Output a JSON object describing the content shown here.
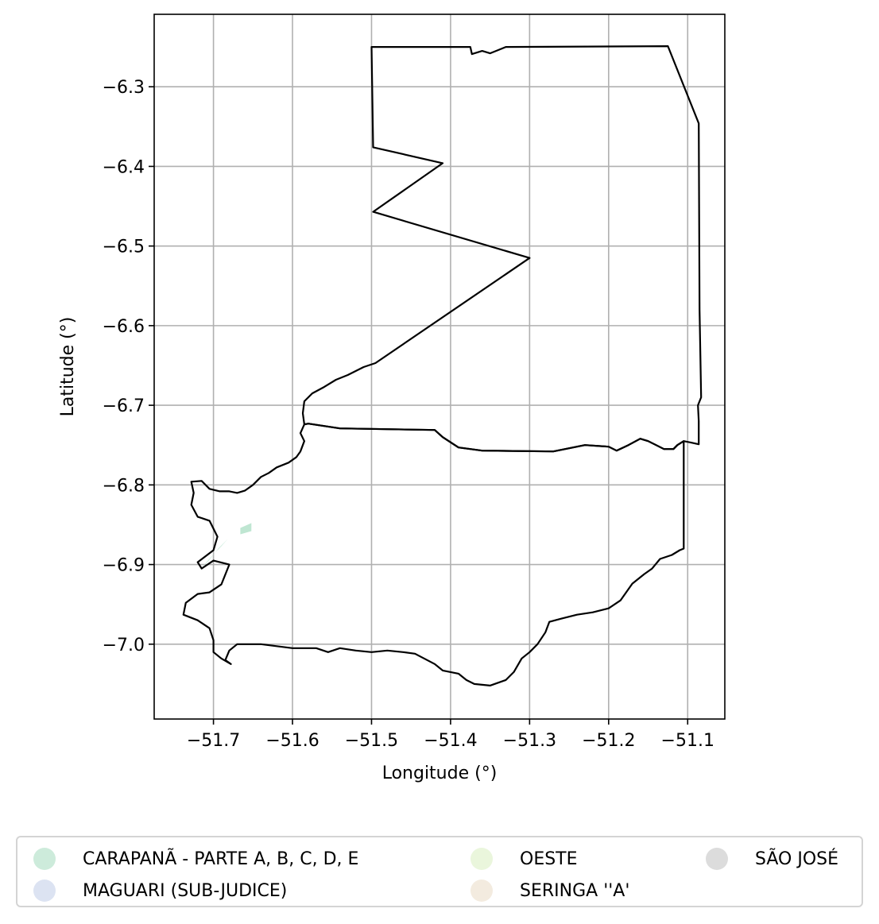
{
  "map": {
    "xlabel": "Longitude (°)",
    "ylabel": "Latitude (°)",
    "x_ticks": [
      {
        "value": -51.7,
        "label": "−51.7"
      },
      {
        "value": -51.6,
        "label": "−51.6"
      },
      {
        "value": -51.5,
        "label": "−51.5"
      },
      {
        "value": -51.4,
        "label": "−51.4"
      },
      {
        "value": -51.3,
        "label": "−51.3"
      },
      {
        "value": -51.2,
        "label": "−51.2"
      },
      {
        "value": -51.1,
        "label": "−51.1"
      }
    ],
    "y_ticks": [
      {
        "value": -6.3,
        "label": "−6.3"
      },
      {
        "value": -6.4,
        "label": "−6.4"
      },
      {
        "value": -6.5,
        "label": "−6.5"
      },
      {
        "value": -6.6,
        "label": "−6.6"
      },
      {
        "value": -6.7,
        "label": "−6.7"
      },
      {
        "value": -6.8,
        "label": "−6.8"
      },
      {
        "value": -6.9,
        "label": "−6.9"
      },
      {
        "value": -7.0,
        "label": "−7.0"
      }
    ],
    "xlim": [
      -51.775,
      -51.053
    ],
    "ylim": [
      -7.094,
      -6.209
    ],
    "grid": true,
    "legend_position": "bottom-center",
    "outline_color": "#000000",
    "regions": [
      {
        "name": "north-block",
        "coords": [
          [
            -51.5,
            -6.25
          ],
          [
            -51.375,
            -6.25
          ],
          [
            -51.373,
            -6.259
          ],
          [
            -51.36,
            -6.255
          ],
          [
            -51.35,
            -6.258
          ],
          [
            -51.34,
            -6.254
          ],
          [
            -51.33,
            -6.25
          ],
          [
            -51.125,
            -6.249
          ],
          [
            -51.086,
            -6.346
          ],
          [
            -51.085,
            -6.58
          ],
          [
            -51.083,
            -6.69
          ],
          [
            -51.087,
            -6.7
          ],
          [
            -51.086,
            -6.72
          ],
          [
            -51.086,
            -6.749
          ],
          [
            -51.095,
            -6.747
          ],
          [
            -51.105,
            -6.745
          ],
          [
            -51.113,
            -6.75
          ],
          [
            -51.118,
            -6.755
          ],
          [
            -51.13,
            -6.755
          ],
          [
            -51.14,
            -6.75
          ],
          [
            -51.15,
            -6.745
          ],
          [
            -51.16,
            -6.742
          ],
          [
            -51.175,
            -6.75
          ],
          [
            -51.19,
            -6.757
          ],
          [
            -51.2,
            -6.752
          ],
          [
            -51.23,
            -6.75
          ],
          [
            -51.27,
            -6.758
          ],
          [
            -51.36,
            -6.757
          ],
          [
            -51.39,
            -6.753
          ],
          [
            -51.41,
            -6.74
          ],
          [
            -51.42,
            -6.731
          ],
          [
            -51.54,
            -6.729
          ],
          [
            -51.58,
            -6.723
          ],
          [
            -51.585,
            -6.724
          ],
          [
            -51.587,
            -6.71
          ],
          [
            -51.585,
            -6.695
          ],
          [
            -51.575,
            -6.685
          ],
          [
            -51.56,
            -6.677
          ],
          [
            -51.545,
            -6.668
          ],
          [
            -51.53,
            -6.662
          ],
          [
            -51.51,
            -6.652
          ],
          [
            -51.495,
            -6.647
          ],
          [
            -51.3,
            -6.515
          ],
          [
            -51.498,
            -6.457
          ],
          [
            -51.41,
            -6.396
          ],
          [
            -51.498,
            -6.376
          ],
          [
            -51.5,
            -6.25
          ]
        ]
      },
      {
        "name": "south-block",
        "coords": [
          [
            -51.585,
            -6.724
          ],
          [
            -51.58,
            -6.723
          ],
          [
            -51.54,
            -6.729
          ],
          [
            -51.42,
            -6.731
          ],
          [
            -51.41,
            -6.74
          ],
          [
            -51.39,
            -6.753
          ],
          [
            -51.36,
            -6.757
          ],
          [
            -51.27,
            -6.758
          ],
          [
            -51.23,
            -6.75
          ],
          [
            -51.2,
            -6.752
          ],
          [
            -51.19,
            -6.757
          ],
          [
            -51.175,
            -6.75
          ],
          [
            -51.16,
            -6.742
          ],
          [
            -51.15,
            -6.745
          ],
          [
            -51.14,
            -6.75
          ],
          [
            -51.13,
            -6.755
          ],
          [
            -51.118,
            -6.755
          ],
          [
            -51.113,
            -6.75
          ],
          [
            -51.105,
            -6.745
          ],
          [
            -51.105,
            -6.88
          ],
          [
            -51.11,
            -6.882
          ],
          [
            -51.12,
            -6.888
          ],
          [
            -51.135,
            -6.893
          ],
          [
            -51.145,
            -6.905
          ],
          [
            -51.155,
            -6.912
          ],
          [
            -51.17,
            -6.924
          ],
          [
            -51.185,
            -6.945
          ],
          [
            -51.2,
            -6.955
          ],
          [
            -51.22,
            -6.96
          ],
          [
            -51.24,
            -6.963
          ],
          [
            -51.26,
            -6.968
          ],
          [
            -51.275,
            -6.972
          ],
          [
            -51.28,
            -6.985
          ],
          [
            -51.29,
            -7.0
          ],
          [
            -51.3,
            -7.01
          ],
          [
            -51.31,
            -7.018
          ],
          [
            -51.32,
            -7.035
          ],
          [
            -51.33,
            -7.045
          ],
          [
            -51.35,
            -7.052
          ],
          [
            -51.37,
            -7.05
          ],
          [
            -51.38,
            -7.045
          ],
          [
            -51.39,
            -7.037
          ],
          [
            -51.41,
            -7.033
          ],
          [
            -51.42,
            -7.025
          ],
          [
            -51.445,
            -7.012
          ],
          [
            -51.46,
            -7.01
          ],
          [
            -51.48,
            -7.008
          ],
          [
            -51.5,
            -7.01
          ],
          [
            -51.52,
            -7.008
          ],
          [
            -51.54,
            -7.005
          ],
          [
            -51.555,
            -7.01
          ],
          [
            -51.57,
            -7.005
          ],
          [
            -51.6,
            -7.005
          ],
          [
            -51.64,
            -7.0
          ],
          [
            -51.67,
            -7.0
          ],
          [
            -51.68,
            -7.008
          ],
          [
            -51.685,
            -7.02
          ],
          [
            -51.678,
            -7.025
          ],
          [
            -51.69,
            -7.018
          ],
          [
            -51.7,
            -7.01
          ],
          [
            -51.7,
            -6.995
          ],
          [
            -51.705,
            -6.98
          ],
          [
            -51.72,
            -6.97
          ],
          [
            -51.738,
            -6.963
          ],
          [
            -51.735,
            -6.948
          ],
          [
            -51.72,
            -6.937
          ],
          [
            -51.705,
            -6.935
          ],
          [
            -51.69,
            -6.925
          ],
          [
            -51.68,
            -6.9
          ],
          [
            -51.7,
            -6.895
          ],
          [
            -51.715,
            -6.905
          ],
          [
            -51.72,
            -6.897
          ],
          [
            -51.7,
            -6.882
          ],
          [
            -51.695,
            -6.865
          ],
          [
            -51.705,
            -6.845
          ],
          [
            -51.72,
            -6.84
          ],
          [
            -51.728,
            -6.825
          ],
          [
            -51.725,
            -6.81
          ],
          [
            -51.728,
            -6.796
          ],
          [
            -51.715,
            -6.795
          ],
          [
            -51.705,
            -6.805
          ],
          [
            -51.692,
            -6.808
          ],
          [
            -51.68,
            -6.808
          ],
          [
            -51.67,
            -6.81
          ],
          [
            -51.66,
            -6.807
          ],
          [
            -51.65,
            -6.8
          ],
          [
            -51.64,
            -6.79
          ],
          [
            -51.63,
            -6.785
          ],
          [
            -51.62,
            -6.778
          ],
          [
            -51.605,
            -6.772
          ],
          [
            -51.595,
            -6.765
          ],
          [
            -51.59,
            -6.758
          ],
          [
            -51.585,
            -6.745
          ],
          [
            -51.59,
            -6.735
          ],
          [
            -51.585,
            -6.724
          ]
        ]
      }
    ],
    "patches": [
      {
        "name": "carapana-patch",
        "coords": [
          [
            -51.666,
            -6.862
          ],
          [
            -51.652,
            -6.858
          ],
          [
            -51.652,
            -6.848
          ],
          [
            -51.666,
            -6.854
          ]
        ]
      },
      {
        "name": "carapana-patch-small",
        "coords": [
          [
            -51.716,
            -6.905
          ],
          [
            -51.698,
            -6.885
          ],
          [
            -51.69,
            -6.877
          ],
          [
            -51.682,
            -6.868
          ],
          [
            -51.694,
            -6.88
          ],
          [
            -51.706,
            -6.895
          ]
        ]
      }
    ],
    "patch_color": "#bfe6d2"
  },
  "legend": {
    "items": [
      {
        "label": "CARAPANÃ - PARTE A, B, C, D, E",
        "color": "#cdebdb"
      },
      {
        "label": "MAGUARI (SUB-JUDICE)",
        "color": "#dce3f2"
      },
      {
        "label": "OESTE",
        "color": "#eaf6dc"
      },
      {
        "label": "SERINGA ''A'",
        "color": "#f3ebdf"
      },
      {
        "label": "SÃO JOSÉ",
        "color": "#dcdcdc"
      }
    ]
  }
}
